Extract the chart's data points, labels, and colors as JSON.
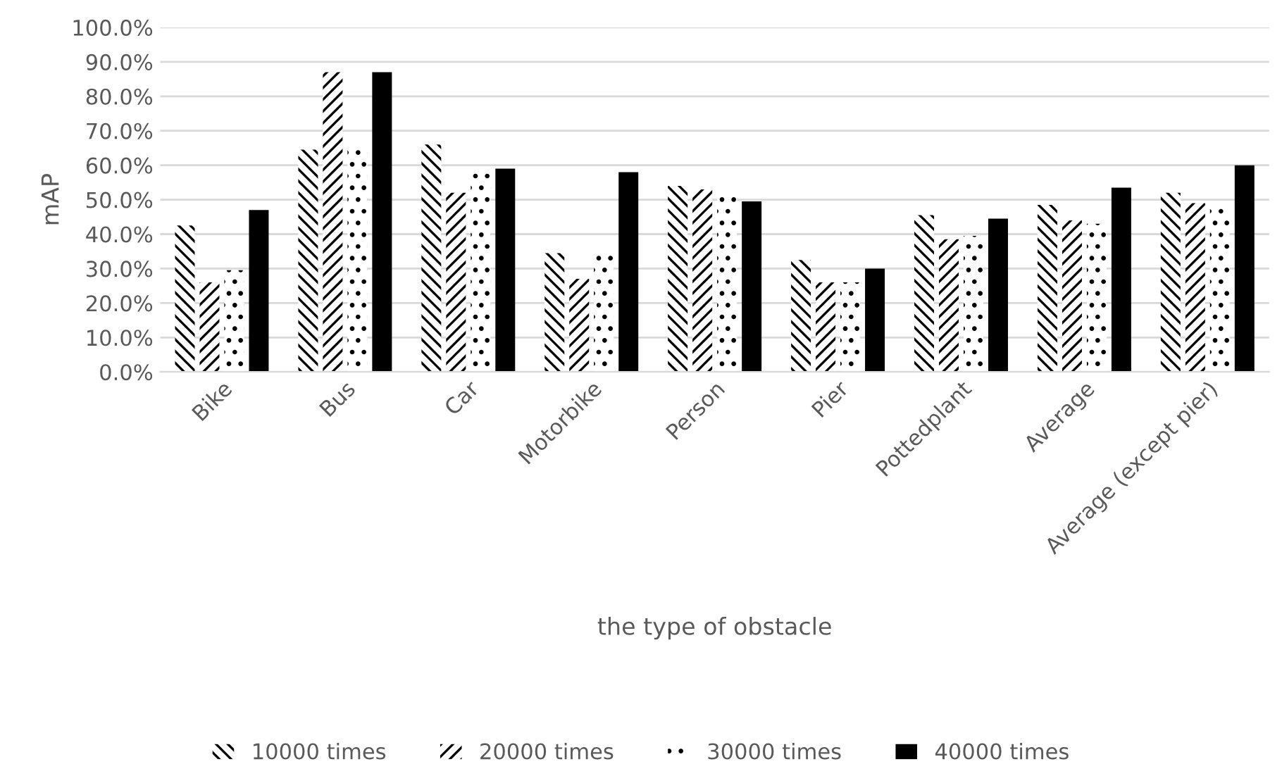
{
  "chart_data": {
    "type": "bar",
    "xlabel": "the type of obstacle",
    "ylabel": "mAP",
    "categories": [
      "Bike",
      "Bus",
      "Car",
      "Motorbike",
      "Person",
      "Pier",
      "Pottedplant",
      "Average",
      "Average (except pier)"
    ],
    "series": [
      {
        "name": "10000 times",
        "color": "#000000",
        "values": [
          42.5,
          64.5,
          66,
          34.5,
          54,
          32.5,
          45.5,
          48.5,
          52
        ]
      },
      {
        "name": "20000 times",
        "color": "#000000",
        "values": [
          26,
          87,
          52,
          27,
          53,
          26,
          38.5,
          44,
          49
        ]
      },
      {
        "name": "30000 times",
        "color": "#000000",
        "values": [
          29.5,
          65.5,
          59,
          34.5,
          51,
          26,
          39.5,
          43,
          48
        ]
      },
      {
        "name": "40000 times",
        "color": "#000000",
        "values": [
          47,
          87,
          59,
          58,
          49.5,
          30,
          44.5,
          53.5,
          60
        ]
      }
    ],
    "ylim": [
      0,
      100
    ],
    "yticks": [
      {
        "value": 0,
        "label": "0.0%"
      },
      {
        "value": 10,
        "label": "10.0%"
      },
      {
        "value": 20,
        "label": "20.0%"
      },
      {
        "value": 30,
        "label": "30.0%"
      },
      {
        "value": 40,
        "label": "40.0%"
      },
      {
        "value": 50,
        "label": "50.0%"
      },
      {
        "value": 60,
        "label": "60.0%"
      },
      {
        "value": 70,
        "label": "70.0%"
      },
      {
        "value": 80,
        "label": "80.0%"
      },
      {
        "value": 90,
        "label": "90.0%"
      },
      {
        "value": 100,
        "label": "100.0%"
      }
    ],
    "grid": "y",
    "legend": "bottom"
  }
}
